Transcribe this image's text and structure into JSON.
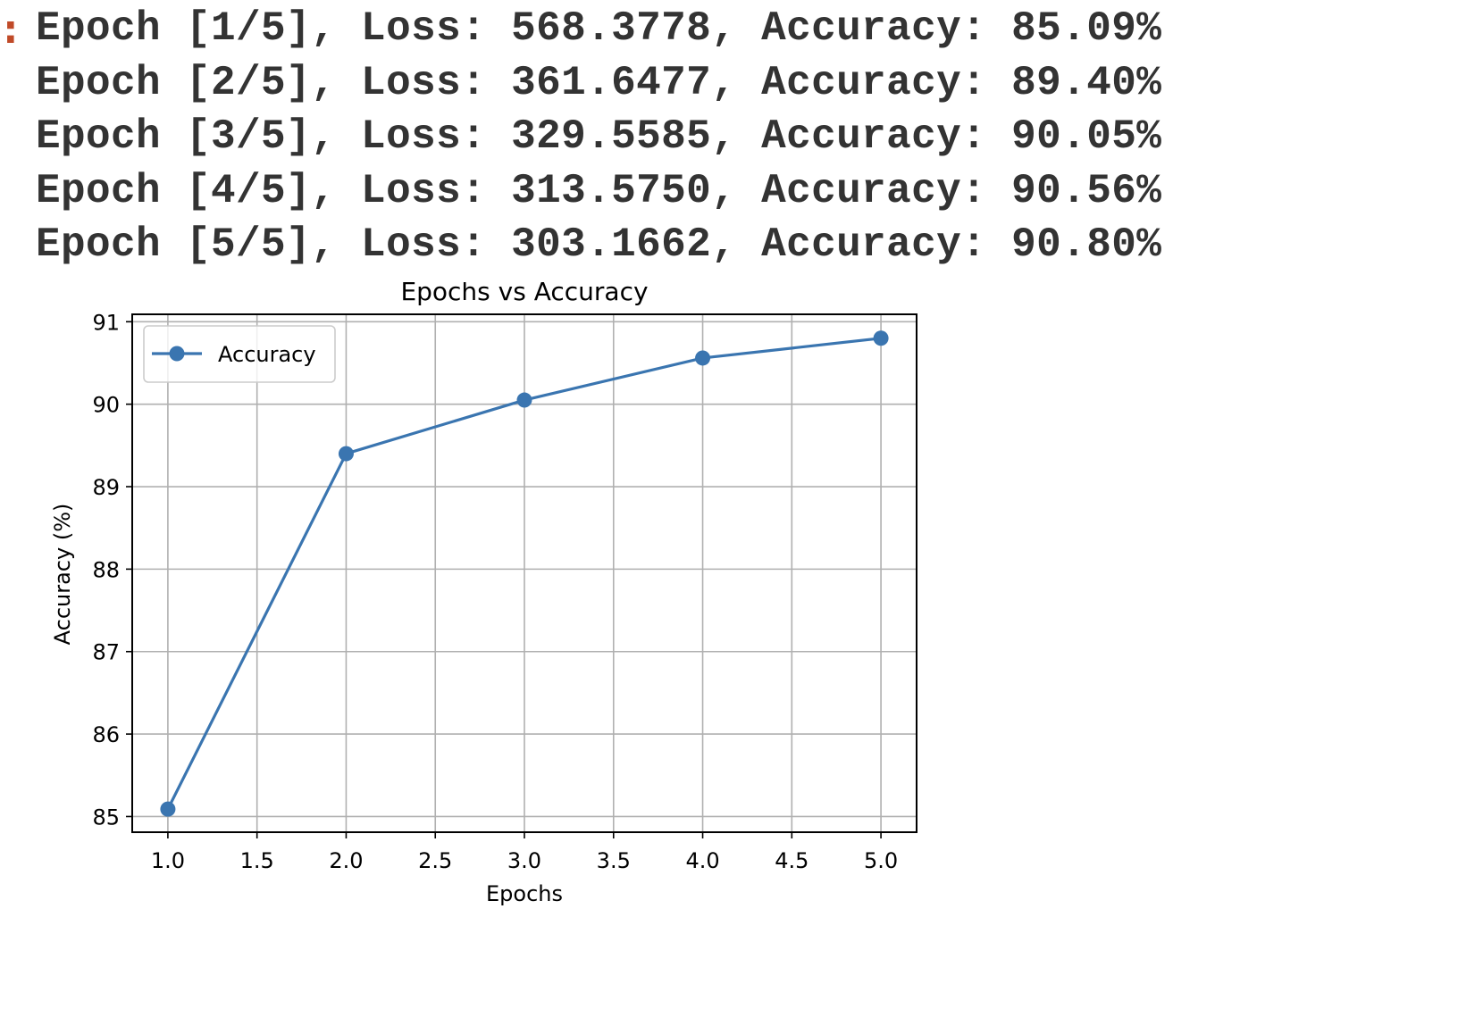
{
  "output": {
    "prompt_glyph": ":",
    "lines": [
      "Epoch [1/5], Loss: 568.3778, Accuracy: 85.09%",
      "Epoch [2/5], Loss: 361.6477, Accuracy: 89.40%",
      "Epoch [3/5], Loss: 329.5585, Accuracy: 90.05%",
      "Epoch [4/5], Loss: 313.5750, Accuracy: 90.56%",
      "Epoch [5/5], Loss: 303.1662, Accuracy: 90.80%"
    ],
    "prompt_color": "#c04a28",
    "text_color": "#333333"
  },
  "chart_data": {
    "type": "line",
    "title": "Epochs vs Accuracy",
    "xlabel": "Epochs",
    "ylabel": "Accuracy (%)",
    "xlim": [
      0.8,
      5.2
    ],
    "ylim": [
      84.81,
      91.09
    ],
    "xticks": [
      1.0,
      1.5,
      2.0,
      2.5,
      3.0,
      3.5,
      4.0,
      4.5,
      5.0
    ],
    "xtick_labels": [
      "1.0",
      "1.5",
      "2.0",
      "2.5",
      "3.0",
      "3.5",
      "4.0",
      "4.5",
      "5.0"
    ],
    "yticks": [
      85,
      86,
      87,
      88,
      89,
      90,
      91
    ],
    "ytick_labels": [
      "85",
      "86",
      "87",
      "88",
      "89",
      "90",
      "91"
    ],
    "grid": true,
    "legend_position": "upper-left",
    "series": [
      {
        "name": "Accuracy",
        "x": [
          1,
          2,
          3,
          4,
          5
        ],
        "values": [
          85.09,
          89.4,
          90.05,
          90.56,
          90.8
        ],
        "color": "#3a75b0",
        "marker": "circle"
      }
    ]
  }
}
